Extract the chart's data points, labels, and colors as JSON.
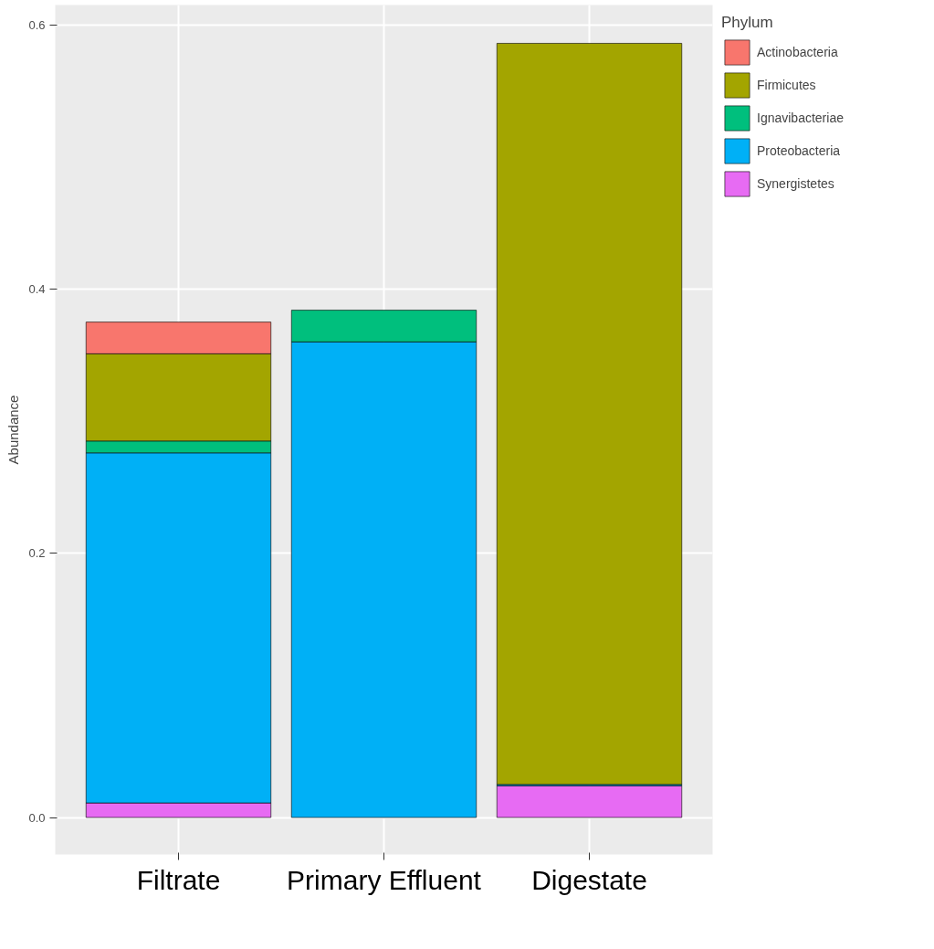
{
  "chart_data": {
    "type": "bar",
    "stacked": true,
    "ylabel": "Abundance",
    "legend_title": "Phylum",
    "legend": "right",
    "grid": true,
    "categories": [
      "Filtrate",
      "Primary Effluent",
      "Digestate"
    ],
    "ylim": [
      -0.028,
      0.615
    ],
    "yticks": [
      {
        "value": 0,
        "label": "0.0"
      },
      {
        "value": 0.2,
        "label": "0.2"
      },
      {
        "value": 0.4,
        "label": "0.4"
      },
      {
        "value": 0.6,
        "label": "0.6"
      }
    ],
    "series": [
      {
        "name": "Synergistetes",
        "color": "#e76bf3",
        "values": [
          0.011,
          null,
          0.024
        ]
      },
      {
        "name": "Proteobacteria",
        "color": "#00b0f6",
        "values": [
          0.265,
          0.36,
          0.001
        ]
      },
      {
        "name": "Ignavibacteriae",
        "color": "#00bf7d",
        "values": [
          0.009,
          0.024,
          null
        ]
      },
      {
        "name": "Firmicutes",
        "color": "#a3a500",
        "values": [
          0.066,
          null,
          0.561
        ]
      },
      {
        "name": "Actinobacteria",
        "color": "#f8766d",
        "values": [
          0.024,
          null,
          null
        ]
      }
    ]
  }
}
